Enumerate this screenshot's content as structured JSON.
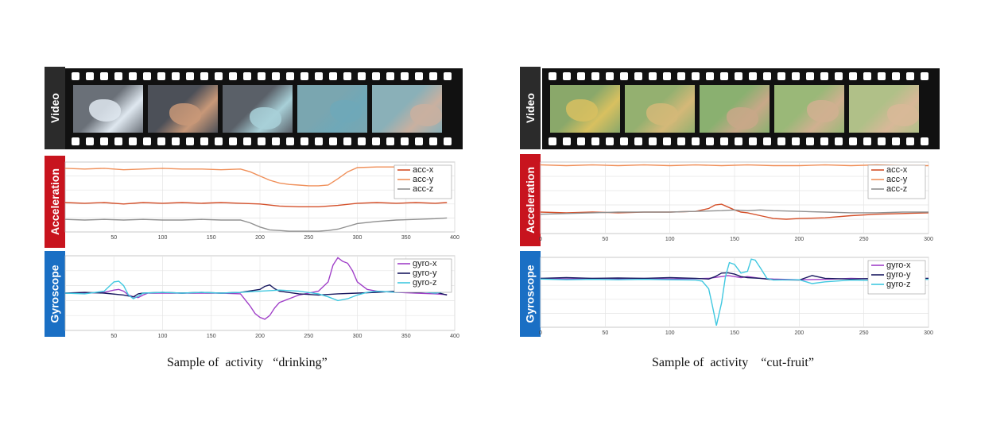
{
  "sidebar_labels": {
    "video": "Video",
    "acceleration": "Acceleration",
    "gyroscope": "Gyroscope"
  },
  "panels": [
    {
      "caption": "Sample of  activity   “drinking”",
      "frames_colors": [
        "#6a7078",
        "#4c5058",
        "#5a6068",
        "#7aa6b0",
        "#8ab0b8"
      ],
      "accent_colors": [
        "#dfe8f0",
        "#c89878",
        "#a8d0d8",
        "#6fa8b8",
        "#c9b0a0"
      ]
    },
    {
      "caption": "Sample of  activity    “cut-fruit”",
      "frames_colors": [
        "#8aa86a",
        "#94b070",
        "#8ab070",
        "#9ab878",
        "#b0c088"
      ],
      "accent_colors": [
        "#d8c060",
        "#d4b878",
        "#c8a888",
        "#d0b090",
        "#d8b898"
      ]
    }
  ],
  "chart_data": [
    {
      "type": "line",
      "title": "",
      "xlabel": "",
      "ylabel": "",
      "xlim": [
        0,
        400
      ],
      "xticks": [
        50,
        100,
        150,
        200,
        250,
        300,
        350,
        400
      ],
      "ylim": [
        0,
        1
      ],
      "grid": true,
      "legend": "top-right",
      "series": [
        {
          "name": "acc-x",
          "color": "#d4502a",
          "x": [
            0,
            20,
            40,
            60,
            80,
            100,
            120,
            140,
            160,
            180,
            200,
            220,
            240,
            260,
            280,
            300,
            320,
            340,
            360,
            380,
            392
          ],
          "values": [
            0.42,
            0.41,
            0.42,
            0.4,
            0.42,
            0.41,
            0.42,
            0.41,
            0.42,
            0.41,
            0.4,
            0.37,
            0.36,
            0.36,
            0.38,
            0.41,
            0.42,
            0.41,
            0.42,
            0.41,
            0.42
          ]
        },
        {
          "name": "acc-y",
          "color": "#f0905a",
          "x": [
            0,
            20,
            40,
            60,
            80,
            100,
            120,
            140,
            160,
            180,
            190,
            200,
            210,
            220,
            230,
            240,
            250,
            260,
            270,
            280,
            290,
            300,
            320,
            340,
            360,
            380,
            392
          ],
          "values": [
            0.91,
            0.9,
            0.91,
            0.89,
            0.9,
            0.91,
            0.9,
            0.9,
            0.89,
            0.9,
            0.86,
            0.8,
            0.74,
            0.7,
            0.68,
            0.67,
            0.66,
            0.66,
            0.67,
            0.76,
            0.86,
            0.92,
            0.93,
            0.93,
            0.92,
            0.93,
            0.93
          ]
        },
        {
          "name": "acc-z",
          "color": "#909090",
          "x": [
            0,
            20,
            40,
            60,
            80,
            100,
            120,
            140,
            160,
            180,
            190,
            200,
            210,
            220,
            230,
            240,
            250,
            260,
            270,
            280,
            290,
            300,
            320,
            340,
            360,
            380,
            392
          ],
          "values": [
            0.18,
            0.17,
            0.18,
            0.17,
            0.18,
            0.17,
            0.17,
            0.18,
            0.17,
            0.17,
            0.13,
            0.07,
            0.03,
            0.02,
            0.01,
            0.01,
            0.01,
            0.01,
            0.02,
            0.04,
            0.08,
            0.12,
            0.15,
            0.17,
            0.18,
            0.19,
            0.2
          ]
        }
      ]
    },
    {
      "type": "line",
      "title": "",
      "xlabel": "",
      "ylabel": "",
      "xlim": [
        0,
        400
      ],
      "xticks": [
        50,
        100,
        150,
        200,
        250,
        300,
        350,
        400
      ],
      "ylim": [
        -1,
        1
      ],
      "grid": true,
      "legend": "top-right",
      "series": [
        {
          "name": "gyro-x",
          "color": "#a040c8",
          "x": [
            0,
            20,
            40,
            50,
            55,
            60,
            65,
            70,
            75,
            80,
            85,
            90,
            100,
            120,
            140,
            160,
            180,
            190,
            195,
            200,
            205,
            210,
            215,
            220,
            240,
            260,
            270,
            275,
            280,
            285,
            290,
            295,
            300,
            310,
            320,
            340,
            360,
            380,
            392
          ],
          "values": [
            0,
            0,
            0.02,
            0.08,
            0.1,
            0.05,
            -0.05,
            -0.1,
            -0.12,
            -0.05,
            0,
            0,
            0,
            0,
            0,
            0,
            -0.02,
            -0.35,
            -0.55,
            -0.65,
            -0.7,
            -0.6,
            -0.4,
            -0.25,
            -0.05,
            0.05,
            0.3,
            0.75,
            0.95,
            0.85,
            0.8,
            0.6,
            0.3,
            0.1,
            0.05,
            0.02,
            0,
            -0.02,
            -0.04
          ]
        },
        {
          "name": "gyro-y",
          "color": "#1a1a60",
          "x": [
            0,
            20,
            40,
            60,
            70,
            75,
            80,
            100,
            120,
            140,
            160,
            180,
            200,
            205,
            210,
            215,
            220,
            240,
            260,
            280,
            300,
            320,
            340,
            360,
            380,
            392
          ],
          "values": [
            0,
            0.02,
            0,
            -0.05,
            -0.1,
            -0.02,
            0,
            0.02,
            0,
            0.02,
            0,
            0.02,
            0.1,
            0.18,
            0.22,
            0.12,
            0.05,
            -0.02,
            -0.05,
            -0.02,
            0,
            0.02,
            0.05,
            0.02,
            0.03,
            -0.05
          ]
        },
        {
          "name": "gyro-z",
          "color": "#40c8e0",
          "x": [
            0,
            20,
            40,
            50,
            55,
            60,
            65,
            70,
            75,
            80,
            100,
            120,
            140,
            160,
            180,
            200,
            220,
            240,
            260,
            270,
            280,
            290,
            300,
            310,
            320,
            340,
            360,
            380,
            392
          ],
          "values": [
            0,
            -0.02,
            0.05,
            0.3,
            0.32,
            0.2,
            -0.05,
            -0.15,
            -0.08,
            0,
            0.02,
            0,
            0.02,
            0,
            0.02,
            0.05,
            0.08,
            0.05,
            -0.02,
            -0.1,
            -0.2,
            -0.15,
            -0.05,
            0.02,
            0.05,
            0.02,
            0.05,
            0,
            0.05
          ]
        }
      ]
    },
    {
      "type": "line",
      "title": "",
      "xlabel": "",
      "ylabel": "",
      "xlim": [
        0,
        300
      ],
      "xticks": [
        0,
        50,
        100,
        150,
        200,
        250,
        300
      ],
      "ylim": [
        0,
        1
      ],
      "grid": true,
      "legend": "top-right",
      "series": [
        {
          "name": "acc-x",
          "color": "#d4502a",
          "x": [
            0,
            20,
            40,
            60,
            80,
            100,
            120,
            130,
            135,
            140,
            145,
            150,
            155,
            160,
            170,
            180,
            190,
            200,
            220,
            240,
            260,
            280,
            300
          ],
          "values": [
            0.3,
            0.29,
            0.3,
            0.29,
            0.3,
            0.3,
            0.31,
            0.35,
            0.4,
            0.41,
            0.37,
            0.33,
            0.3,
            0.29,
            0.25,
            0.21,
            0.2,
            0.21,
            0.22,
            0.25,
            0.27,
            0.28,
            0.29
          ]
        },
        {
          "name": "acc-y",
          "color": "#f0905a",
          "x": [
            0,
            20,
            40,
            60,
            80,
            100,
            120,
            140,
            160,
            180,
            200,
            220,
            240,
            260,
            280,
            300
          ],
          "values": [
            0.96,
            0.95,
            0.96,
            0.95,
            0.96,
            0.95,
            0.96,
            0.95,
            0.96,
            0.95,
            0.95,
            0.96,
            0.95,
            0.96,
            0.95,
            0.95
          ]
        },
        {
          "name": "acc-z",
          "color": "#909090",
          "x": [
            0,
            20,
            40,
            60,
            80,
            100,
            120,
            140,
            150,
            160,
            170,
            180,
            200,
            220,
            240,
            260,
            280,
            300
          ],
          "values": [
            0.27,
            0.28,
            0.29,
            0.3,
            0.3,
            0.3,
            0.31,
            0.32,
            0.33,
            0.32,
            0.33,
            0.32,
            0.31,
            0.3,
            0.29,
            0.29,
            0.3,
            0.3
          ]
        }
      ]
    },
    {
      "type": "line",
      "title": "",
      "xlabel": "",
      "ylabel": "",
      "xlim": [
        0,
        300
      ],
      "xticks": [
        0,
        50,
        100,
        150,
        200,
        250,
        300
      ],
      "ylim": [
        -1,
        1
      ],
      "grid": true,
      "legend": "top-right",
      "series": [
        {
          "name": "gyro-x",
          "color": "#a040c8",
          "x": [
            0,
            20,
            40,
            60,
            80,
            100,
            120,
            130,
            140,
            145,
            150,
            155,
            160,
            170,
            180,
            200,
            220,
            240,
            260,
            280,
            300
          ],
          "values": [
            0.4,
            0.38,
            0.4,
            0.39,
            0.4,
            0.38,
            0.39,
            0.4,
            0.45,
            0.48,
            0.45,
            0.42,
            0.45,
            0.4,
            0.38,
            0.36,
            0.37,
            0.4,
            0.38,
            0.37,
            0.4
          ]
        },
        {
          "name": "gyro-y",
          "color": "#1a1a60",
          "x": [
            0,
            20,
            40,
            60,
            80,
            100,
            120,
            130,
            135,
            140,
            145,
            150,
            155,
            160,
            170,
            180,
            200,
            210,
            220,
            240,
            260,
            280,
            300
          ],
          "values": [
            0.4,
            0.42,
            0.4,
            0.41,
            0.4,
            0.42,
            0.4,
            0.38,
            0.45,
            0.55,
            0.56,
            0.52,
            0.45,
            0.42,
            0.4,
            0.36,
            0.35,
            0.48,
            0.4,
            0.38,
            0.4,
            0.39,
            0.4
          ]
        },
        {
          "name": "gyro-z",
          "color": "#40c8e0",
          "x": [
            0,
            20,
            40,
            60,
            80,
            100,
            120,
            125,
            130,
            133,
            136,
            140,
            143,
            146,
            150,
            155,
            160,
            163,
            166,
            170,
            175,
            180,
            200,
            210,
            220,
            240,
            260,
            280,
            300
          ],
          "values": [
            0.38,
            0.36,
            0.37,
            0.36,
            0.37,
            0.36,
            0.35,
            0.32,
            0.1,
            -0.4,
            -0.95,
            -0.3,
            0.45,
            0.85,
            0.8,
            0.55,
            0.6,
            0.95,
            0.92,
            0.7,
            0.4,
            0.35,
            0.36,
            0.25,
            0.3,
            0.35,
            0.34,
            0.36,
            0.37
          ]
        }
      ]
    }
  ]
}
